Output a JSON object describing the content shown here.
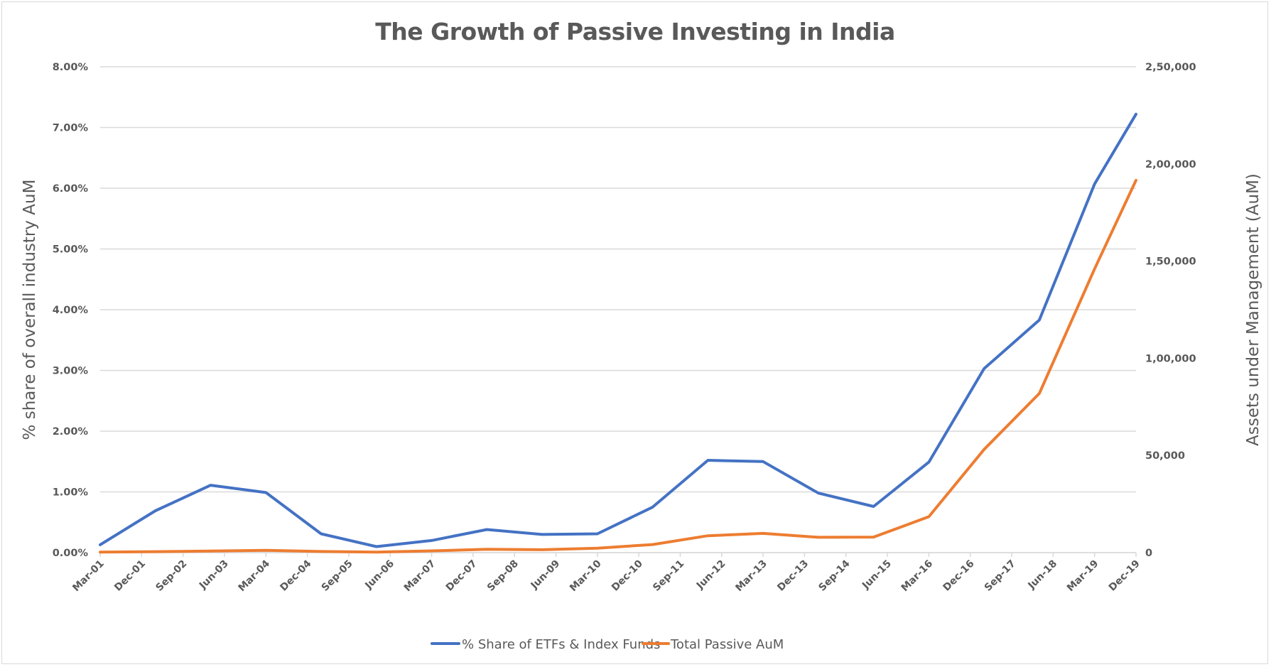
{
  "chart_data": {
    "type": "line",
    "title": "The Growth of Passive Investing in India",
    "xlabel": "",
    "ylabel": "% share of overall industry AuM",
    "y2label": "Assets under Management (AuM)",
    "x_tick_labels": [
      "Mar-01",
      "Dec-01",
      "Sep-02",
      "Jun-03",
      "Mar-04",
      "Dec-04",
      "Sep-05",
      "Jun-06",
      "Mar-07",
      "Dec-07",
      "Sep-08",
      "Jun-09",
      "Mar-10",
      "Dec-10",
      "Sep-11",
      "Jun-12",
      "Mar-13",
      "Dec-13",
      "Sep-14",
      "Jun-15",
      "Mar-16",
      "Dec-16",
      "Sep-17",
      "Jun-18",
      "Mar-19",
      "Dec-19"
    ],
    "x_tick_step_quarters": 3,
    "x": [
      "Mar-01",
      "Mar-02",
      "Mar-03",
      "Mar-04",
      "Mar-05",
      "Mar-06",
      "Mar-07",
      "Mar-08",
      "Mar-09",
      "Mar-10",
      "Mar-11",
      "Mar-12",
      "Mar-13",
      "Mar-14",
      "Mar-15",
      "Mar-16",
      "Mar-17",
      "Mar-18",
      "Mar-19",
      "Dec-19"
    ],
    "x_quarter_index": [
      0,
      4,
      8,
      12,
      16,
      20,
      24,
      28,
      32,
      36,
      40,
      44,
      48,
      52,
      56,
      60,
      64,
      68,
      72,
      75
    ],
    "x_quarter_max": 75,
    "ylim": [
      0,
      8
    ],
    "y_ticks": [
      0,
      1,
      2,
      3,
      4,
      5,
      6,
      7,
      8
    ],
    "y_tick_labels": [
      "0.00%",
      "1.00%",
      "2.00%",
      "3.00%",
      "4.00%",
      "5.00%",
      "6.00%",
      "7.00%",
      "8.00%"
    ],
    "y2lim": [
      0,
      250000
    ],
    "y2_ticks": [
      0,
      50000,
      100000,
      150000,
      200000,
      250000
    ],
    "y2_tick_labels": [
      "0",
      "50,000",
      "1,00,000",
      "1,50,000",
      "2,00,000",
      "2,50,000"
    ],
    "grid": true,
    "legend_position": "bottom",
    "series": [
      {
        "name": "% Share of ETFs & Index Funds",
        "axis": "left",
        "unit": "percent",
        "color": "#4472c4",
        "values": [
          0.13,
          0.69,
          1.11,
          0.99,
          0.31,
          0.1,
          0.2,
          0.38,
          0.3,
          0.31,
          0.75,
          1.52,
          1.5,
          0.98,
          0.76,
          1.49,
          3.03,
          3.83,
          6.07,
          7.22
        ]
      },
      {
        "name": "Total Passive AuM",
        "axis": "right",
        "unit": "AuM",
        "color": "#ed7d31",
        "values": [
          300,
          500,
          800,
          1200,
          600,
          300,
          900,
          1700,
          1500,
          2300,
          4150,
          8700,
          9900,
          7900,
          8000,
          18500,
          53100,
          81900,
          146000,
          191600
        ]
      }
    ]
  }
}
